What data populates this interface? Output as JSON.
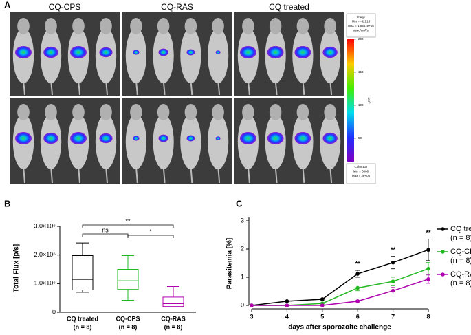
{
  "panel_a": {
    "label": "A",
    "columns": [
      "CQ-CPS",
      "CQ-RAS",
      "CQ treated"
    ],
    "image_box": [
      "Image",
      "Min = -52913",
      "Max = 1.8381e+05",
      "p/sec/cm²/sr"
    ],
    "colorbar_box": [
      "Color Bar",
      "Min = 6000",
      "Max = 2e+05"
    ],
    "colorbar_unit": "x10³",
    "colorbar_ticks": [
      200,
      150,
      100,
      50
    ]
  },
  "chart_data": [
    {
      "type": "box",
      "panel_label": "B",
      "y_label": "Total Flux [p/s]",
      "categories": [
        "CQ treated",
        "CQ-CPS",
        "CQ-RAS"
      ],
      "sublabels": [
        "(n = 8)",
        "(n = 8)",
        "(n = 8)"
      ],
      "boxes": [
        {
          "color": "#000000",
          "min": 700000,
          "q1": 780000,
          "median": 1150000,
          "q3": 1980000,
          "max": 2420000
        },
        {
          "color": "#22b822",
          "min": 420000,
          "q1": 800000,
          "median": 1100000,
          "q3": 1500000,
          "max": 1980000
        },
        {
          "color": "#b000b0",
          "min": 190000,
          "q1": 200000,
          "median": 300000,
          "q3": 530000,
          "max": 900000
        }
      ],
      "annotations": [
        "ns",
        "**",
        "*"
      ],
      "ylim": [
        0,
        3000000
      ],
      "yticks": [
        0,
        {
          "value": 1000000,
          "label": "1.0×10⁶"
        },
        {
          "value": 2000000,
          "label": "2.0×10⁶"
        },
        {
          "value": 3000000,
          "label": "3.0×10⁶"
        }
      ]
    },
    {
      "type": "line",
      "panel_label": "C",
      "x_label": "days after sporozoite challenge",
      "y_label": "Parasitemia [%]",
      "x": [
        3,
        4,
        5,
        6,
        7,
        8
      ],
      "series": [
        {
          "name": "CQ treated",
          "n_label": "(n = 8)",
          "color": "#000000",
          "values": [
            0,
            0.15,
            0.22,
            1.12,
            1.52,
            1.97
          ],
          "errors": [
            0,
            0.02,
            0.03,
            0.12,
            0.22,
            0.38
          ]
        },
        {
          "name": "CQ-CPS",
          "n_label": "(n = 8)",
          "color": "#22b822",
          "values": [
            0,
            0,
            0.07,
            0.62,
            0.85,
            1.3
          ],
          "errors": [
            0,
            0,
            0.02,
            0.1,
            0.15,
            0.22
          ]
        },
        {
          "name": "CQ-RAS",
          "n_label": "(n = 8)",
          "color": "#b000b0",
          "values": [
            0,
            0,
            0,
            0.15,
            0.52,
            0.93
          ],
          "errors": [
            0,
            0,
            0,
            0.03,
            0.12,
            0.15
          ]
        }
      ],
      "annotations": [
        {
          "x": 6,
          "text": "**"
        },
        {
          "x": 7,
          "text": "**"
        },
        {
          "x": 8,
          "text": "**"
        }
      ],
      "xlim": [
        3,
        8
      ],
      "xticks": [
        3,
        4,
        5,
        6,
        7,
        8
      ],
      "ylim": [
        0,
        3
      ],
      "yticks": [
        0,
        1,
        2,
        3
      ]
    }
  ]
}
